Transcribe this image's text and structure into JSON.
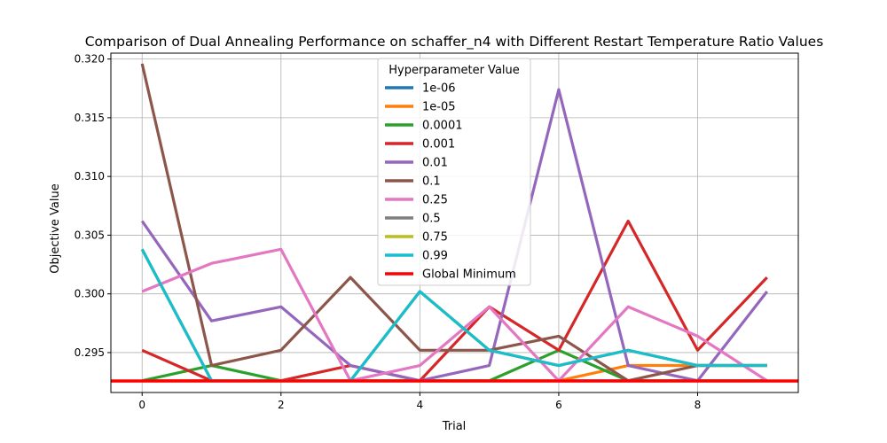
{
  "chart_data": {
    "type": "line",
    "title": "Comparison of Dual Annealing Performance on schaffer_n4 with Different Restart Temperature Ratio Values",
    "xlabel": "Trial",
    "ylabel": "Objective Value",
    "xlim": [
      -0.45,
      9.45
    ],
    "ylim": [
      0.2916,
      0.3205
    ],
    "x_ticks": [
      0,
      2,
      4,
      6,
      8
    ],
    "y_ticks": [
      0.295,
      0.3,
      0.305,
      0.31,
      0.315,
      0.32
    ],
    "y_tick_labels": [
      "0.295",
      "0.300",
      "0.305",
      "0.310",
      "0.315",
      "0.320"
    ],
    "grid": true,
    "legend": {
      "title": "Hyperparameter Value",
      "placement": "upper center"
    },
    "x": [
      0,
      1,
      2,
      3,
      4,
      5,
      6,
      7,
      8,
      9
    ],
    "series": [
      {
        "name": "1e-06",
        "color": "#1f77b4",
        "values": [
          0.2926,
          0.2926,
          0.2926,
          0.2926,
          0.2926,
          0.2926,
          0.2926,
          0.2926,
          0.2926,
          0.2926
        ]
      },
      {
        "name": "1e-05",
        "color": "#ff7f0e",
        "values": [
          0.2926,
          0.2926,
          0.2926,
          0.2926,
          0.2926,
          0.2926,
          0.2926,
          0.2939,
          0.2939,
          0.2939
        ]
      },
      {
        "name": "0.0001",
        "color": "#2ca02c",
        "values": [
          0.2926,
          0.2939,
          0.2926,
          0.2926,
          0.2926,
          0.2926,
          0.2952,
          0.2926,
          0.2926,
          0.2926
        ]
      },
      {
        "name": "0.001",
        "color": "#d62728",
        "values": [
          0.2952,
          0.2926,
          0.2926,
          0.2939,
          0.2926,
          0.2989,
          0.2952,
          0.3062,
          0.2952,
          0.3014
        ]
      },
      {
        "name": "0.01",
        "color": "#9467bd",
        "values": [
          0.3062,
          0.2977,
          0.2989,
          0.2939,
          0.2926,
          0.2939,
          0.3174,
          0.2939,
          0.2926,
          0.3002
        ]
      },
      {
        "name": "0.1",
        "color": "#8c564b",
        "values": [
          0.3196,
          0.2939,
          0.2952,
          0.3014,
          0.2952,
          0.2952,
          0.2964,
          0.2926,
          0.2939,
          0.2939
        ]
      },
      {
        "name": "0.25",
        "color": "#e377c2",
        "values": [
          0.3002,
          0.3026,
          0.3038,
          0.2926,
          0.2939,
          0.2989,
          0.2926,
          0.2989,
          0.2964,
          0.2926
        ]
      },
      {
        "name": "0.5",
        "color": "#7f7f7f",
        "values": [
          0.3038,
          0.2926,
          0.2926,
          0.2926,
          0.3002,
          0.2952,
          0.2939,
          0.2952,
          0.2939,
          0.2939
        ]
      },
      {
        "name": "0.75",
        "color": "#bcbd22",
        "values": [
          0.3038,
          0.2926,
          0.2926,
          0.2926,
          0.3002,
          0.2952,
          0.2939,
          0.2952,
          0.2939,
          0.2939
        ]
      },
      {
        "name": "0.99",
        "color": "#17becf",
        "values": [
          0.3038,
          0.2926,
          0.2926,
          0.2926,
          0.3002,
          0.2952,
          0.2939,
          0.2952,
          0.2939,
          0.2939
        ]
      }
    ],
    "reference_line": {
      "name": "Global Minimum",
      "color": "#ff0000",
      "value": 0.29258
    }
  }
}
